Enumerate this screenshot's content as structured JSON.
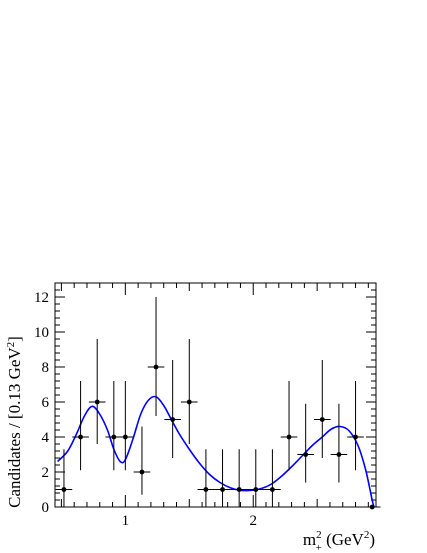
{
  "chart_data": {
    "type": "scatter",
    "ylabel": "Candidates / [0.13 GeV",
    "ylabel_sup": "2",
    "ylabel_tail": "]",
    "xlabel_m": "m",
    "xlabel_sup": "2",
    "xlabel_sub": "+",
    "xlabel_unit": " (GeV",
    "xlabel_unit_sup": "2",
    "xlabel_unit_tail": ")",
    "xlim": [
      0.45,
      2.96
    ],
    "ylim": [
      0,
      12.8
    ],
    "x_ticks": [
      "1",
      "2"
    ],
    "y_ticks": [
      "0",
      "2",
      "4",
      "6",
      "8",
      "10",
      "12"
    ],
    "bin_width": 0.13,
    "series": [
      {
        "points": [
          {
            "x": 0.52,
            "y": 1,
            "err": [
              1,
              2.3
            ]
          },
          {
            "x": 0.65,
            "y": 4,
            "err": [
              1.9,
              3.2
            ]
          },
          {
            "x": 0.78,
            "y": 6,
            "err": [
              2.4,
              3.6
            ]
          },
          {
            "x": 0.91,
            "y": 4,
            "err": [
              1.9,
              3.2
            ]
          },
          {
            "x": 1.0,
            "y": 4,
            "err": [
              1.9,
              3.2
            ]
          },
          {
            "x": 1.13,
            "y": 2,
            "err": [
              1.3,
              2.6
            ]
          },
          {
            "x": 1.24,
            "y": 8,
            "err": [
              2.8,
              4.0
            ]
          },
          {
            "x": 1.37,
            "y": 5,
            "err": [
              2.2,
              3.4
            ]
          },
          {
            "x": 1.5,
            "y": 6,
            "err": [
              2.4,
              3.6
            ]
          },
          {
            "x": 1.63,
            "y": 1,
            "err": [
              1,
              2.3
            ]
          },
          {
            "x": 1.76,
            "y": 1,
            "err": [
              1,
              2.3
            ]
          },
          {
            "x": 1.89,
            "y": 1,
            "err": [
              1,
              2.3
            ]
          },
          {
            "x": 2.02,
            "y": 1,
            "err": [
              1,
              2.3
            ]
          },
          {
            "x": 2.15,
            "y": 1,
            "err": [
              1,
              2.3
            ]
          },
          {
            "x": 2.28,
            "y": 4,
            "err": [
              1.9,
              3.2
            ]
          },
          {
            "x": 2.41,
            "y": 3,
            "err": [
              1.6,
              2.9
            ]
          },
          {
            "x": 2.54,
            "y": 5,
            "err": [
              2.2,
              3.4
            ]
          },
          {
            "x": 2.67,
            "y": 3,
            "err": [
              1.6,
              2.9
            ]
          },
          {
            "x": 2.8,
            "y": 4,
            "err": [
              1.9,
              3.2
            ]
          },
          {
            "x": 2.93,
            "y": 0,
            "err": [
              0,
              0
            ]
          }
        ]
      }
    ],
    "fit_curve": {
      "color": "#0000ff",
      "points": [
        [
          0.47,
          2.6
        ],
        [
          0.55,
          3.2
        ],
        [
          0.62,
          4.2
        ],
        [
          0.68,
          5.2
        ],
        [
          0.74,
          5.75
        ],
        [
          0.8,
          5.3
        ],
        [
          0.86,
          4.4
        ],
        [
          0.91,
          3.3
        ],
        [
          0.96,
          2.6
        ],
        [
          1.0,
          2.7
        ],
        [
          1.06,
          3.9
        ],
        [
          1.12,
          5.3
        ],
        [
          1.18,
          6.1
        ],
        [
          1.24,
          6.3
        ],
        [
          1.3,
          5.8
        ],
        [
          1.36,
          5.0
        ],
        [
          1.42,
          4.2
        ],
        [
          1.5,
          3.3
        ],
        [
          1.58,
          2.5
        ],
        [
          1.66,
          1.85
        ],
        [
          1.74,
          1.4
        ],
        [
          1.82,
          1.1
        ],
        [
          1.9,
          0.95
        ],
        [
          1.98,
          0.95
        ],
        [
          2.06,
          1.05
        ],
        [
          2.14,
          1.3
        ],
        [
          2.22,
          1.75
        ],
        [
          2.3,
          2.3
        ],
        [
          2.38,
          2.9
        ],
        [
          2.46,
          3.5
        ],
        [
          2.54,
          4.0
        ],
        [
          2.61,
          4.45
        ],
        [
          2.68,
          4.6
        ],
        [
          2.75,
          4.35
        ],
        [
          2.82,
          3.5
        ],
        [
          2.88,
          2.1
        ],
        [
          2.93,
          0.4
        ],
        [
          2.945,
          0.0
        ]
      ]
    },
    "marker_color": "#000000"
  }
}
